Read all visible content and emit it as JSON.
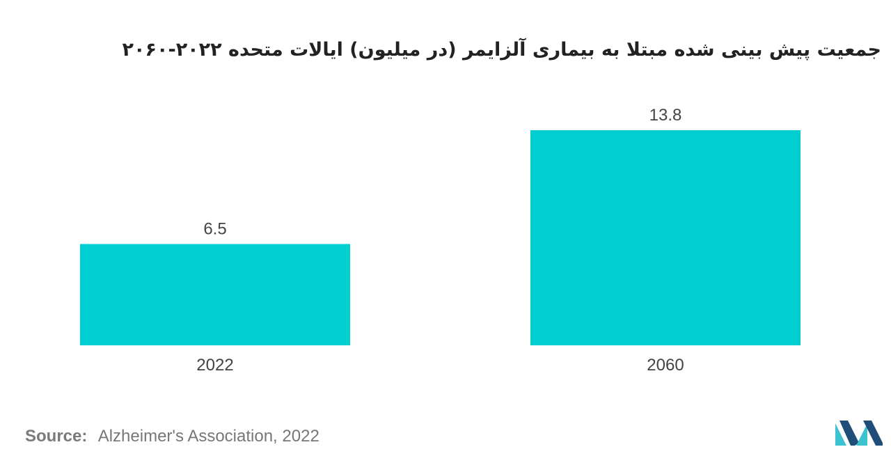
{
  "chart_data": {
    "type": "bar",
    "title": "جمعیت پیش بینی شده مبتلا به بیماری آلزایمر (در میلیون) ایالات متحده ۲۰۲۲-۲۰۶۰",
    "categories": [
      "2022",
      "2060"
    ],
    "values": [
      6.5,
      13.8
    ],
    "value_labels": [
      "6.5",
      "13.8"
    ],
    "xlabel": "",
    "ylabel": "",
    "ylim": [
      0,
      13.8
    ],
    "grid": false,
    "legend": "none"
  },
  "footer": {
    "source_label": "Source:",
    "source_text": "Alzheimer's Association, 2022"
  },
  "colors": {
    "bar": "#00CED1",
    "logo_dark": "#1f4e79",
    "logo_light": "#3cc3cf"
  },
  "logo": {
    "icon": "mordor-intelligence-logo-icon"
  }
}
